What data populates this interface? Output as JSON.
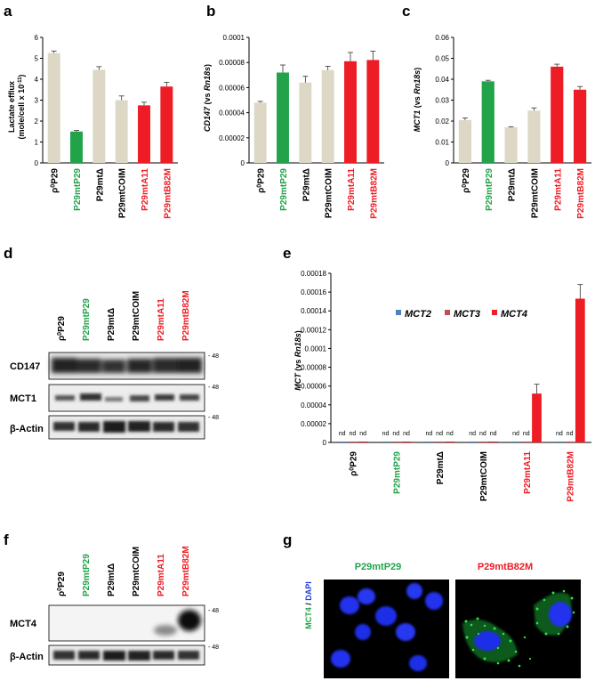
{
  "colors": {
    "beige": "#DDD8C6",
    "green": "#22A34A",
    "red": "#EE1C24",
    "black": "#000000",
    "blue_mct2": "#4F81BD",
    "brown_mct3": "#C0504D"
  },
  "panels": {
    "a": {
      "letter": "a",
      "ylabel_line1": "Lactate efflux",
      "ylabel_line2": "(mole/cell x 10",
      "ylabel_sup": "-11",
      "ylabel_end": ")"
    },
    "b": {
      "letter": "b",
      "ylabel_main": "CD147",
      "ylabel_paren": " (vs ",
      "ylabel_ref": "Rn18s",
      "ylabel_close": ")"
    },
    "c": {
      "letter": "c",
      "ylabel_main": "MCT1",
      "ylabel_paren": " (vs ",
      "ylabel_ref": "Rn18s",
      "ylabel_close": ")"
    },
    "d": {
      "letter": "d",
      "rows": [
        "CD147",
        "MCT1",
        "β-Actin"
      ],
      "mw": [
        "- 48",
        "- 48",
        "- 48"
      ]
    },
    "e": {
      "letter": "e",
      "ylabel_main": "MCT",
      "ylabel_paren": " (vs ",
      "ylabel_ref": "Rn18s",
      "ylabel_close": ")",
      "legend": [
        "MCT2",
        "MCT3",
        "MCT4"
      ],
      "nd_label": "nd"
    },
    "f": {
      "letter": "f",
      "rows": [
        "MCT4",
        "β-Actin"
      ],
      "mw": [
        "- 48",
        "- 48"
      ]
    },
    "g": {
      "letter": "g",
      "ylabel_green": "MCT4",
      "ylabel_sep": " / ",
      "ylabel_blue": "DAPI",
      "titles": [
        "P29mtP29",
        "P29mtB82M"
      ]
    }
  },
  "lane_labels": [
    {
      "pre": "ρ",
      "sup": "0",
      "post": "P29",
      "color": "black"
    },
    {
      "pre": "P29mtP29",
      "sup": "",
      "post": "",
      "color": "green"
    },
    {
      "pre": "P29mtΔ",
      "sup": "",
      "post": "",
      "color": "black"
    },
    {
      "pre": "P29mtCOIM",
      "sup": "",
      "post": "",
      "color": "black"
    },
    {
      "pre": "P29mtA11",
      "sup": "",
      "post": "",
      "color": "red"
    },
    {
      "pre": "P29mtB82M",
      "sup": "",
      "post": "",
      "color": "red"
    }
  ],
  "chart_data": [
    {
      "panel": "a",
      "type": "bar",
      "categories": [
        "ρ0P29",
        "P29mtP29",
        "P29mtΔ",
        "P29mtCOIM",
        "P29mtA11",
        "P29mtB82M"
      ],
      "values": [
        5.25,
        1.5,
        4.45,
        3.0,
        2.75,
        3.65
      ],
      "errors": [
        0.1,
        0.05,
        0.15,
        0.2,
        0.15,
        0.2
      ],
      "bar_colors": [
        "beige",
        "green",
        "beige",
        "beige",
        "red",
        "red"
      ],
      "ylim": [
        0,
        6
      ],
      "yticks": [
        "0",
        "1",
        "2",
        "3",
        "4",
        "5",
        "6"
      ]
    },
    {
      "panel": "b",
      "type": "bar",
      "categories": [
        "ρ0P29",
        "P29mtP29",
        "P29mtΔ",
        "P29mtCOIM",
        "P29mtA11",
        "P29mtB82M"
      ],
      "values": [
        4.8e-05,
        7.2e-05,
        6.4e-05,
        7.4e-05,
        8.1e-05,
        8.2e-05
      ],
      "errors": [
        1e-06,
        6e-06,
        5e-06,
        3e-06,
        7e-06,
        7e-06
      ],
      "bar_colors": [
        "beige",
        "green",
        "beige",
        "beige",
        "red",
        "red"
      ],
      "ylim": [
        0,
        0.0001
      ],
      "yticks": [
        "0",
        "0.00002",
        "0.00004",
        "0.00006",
        "0.00008",
        "0.0001"
      ]
    },
    {
      "panel": "c",
      "type": "bar",
      "categories": [
        "ρ0P29",
        "P29mtP29",
        "P29mtΔ",
        "P29mtCOIM",
        "P29mtA11",
        "P29mtB82M"
      ],
      "values": [
        0.0205,
        0.039,
        0.017,
        0.025,
        0.046,
        0.035
      ],
      "errors": [
        0.001,
        0.0005,
        0.0003,
        0.0013,
        0.0012,
        0.0015
      ],
      "bar_colors": [
        "beige",
        "green",
        "beige",
        "beige",
        "red",
        "red"
      ],
      "ylim": [
        0,
        0.06
      ],
      "yticks": [
        "0",
        "0.01",
        "0.02",
        "0.03",
        "0.04",
        "0.05",
        "0.06"
      ]
    },
    {
      "panel": "e",
      "type": "bar",
      "categories": [
        "ρ0P29",
        "P29mtP29",
        "P29mtΔ",
        "P29mtCOIM",
        "P29mtA11",
        "P29mtB82M"
      ],
      "series": [
        {
          "name": "MCT2",
          "color": "blue_mct2",
          "values": [
            0,
            0,
            0,
            0,
            0,
            0
          ],
          "nd": [
            true,
            true,
            true,
            true,
            true,
            true
          ]
        },
        {
          "name": "MCT3",
          "color": "brown_mct3",
          "values": [
            0,
            0,
            0,
            0,
            0,
            0
          ],
          "nd": [
            true,
            true,
            true,
            true,
            true,
            true
          ]
        },
        {
          "name": "MCT4",
          "color": "red",
          "values": [
            0,
            0,
            0,
            0,
            5.2e-05,
            0.000153
          ],
          "errors": [
            0,
            0,
            0,
            0,
            1e-05,
            1.5e-05
          ],
          "nd": [
            true,
            true,
            true,
            true,
            false,
            false
          ]
        }
      ],
      "ylim": [
        0,
        0.00018
      ],
      "yticks": [
        "0",
        "0.00002",
        "0.00004",
        "0.00006",
        "0.00008",
        "0.0001",
        "0.00012",
        "0.00014",
        "0.00016",
        "0.00018"
      ],
      "legend": "top-center"
    }
  ]
}
